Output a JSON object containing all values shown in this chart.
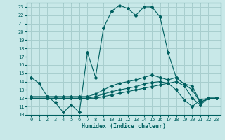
{
  "xlabel": "Humidex (Indice chaleur)",
  "background_color": "#c8e8e8",
  "grid_color": "#a8cece",
  "line_color": "#006060",
  "xlim": [
    -0.5,
    23.5
  ],
  "ylim": [
    10,
    23.5
  ],
  "xticks": [
    0,
    1,
    2,
    3,
    4,
    5,
    6,
    7,
    8,
    9,
    10,
    11,
    12,
    13,
    14,
    15,
    16,
    17,
    18,
    19,
    20,
    21,
    22,
    23
  ],
  "yticks": [
    10,
    11,
    12,
    13,
    14,
    15,
    16,
    17,
    18,
    19,
    20,
    21,
    22,
    23
  ],
  "line1_x": [
    0,
    1,
    2,
    3,
    4,
    5,
    6,
    7,
    8,
    9,
    10,
    11,
    12,
    13,
    14,
    15,
    16,
    17,
    18,
    19,
    20,
    21,
    22,
    23
  ],
  "line1_y": [
    14.5,
    13.8,
    12.2,
    11.5,
    10.3,
    11.2,
    10.3,
    17.5,
    14.5,
    20.5,
    22.5,
    23.2,
    22.8,
    22.0,
    23.0,
    23.0,
    21.8,
    17.5,
    14.5,
    13.7,
    13.0,
    11.5,
    12.0,
    12.0
  ],
  "line2_x": [
    0,
    2,
    3,
    4,
    5,
    6,
    7,
    8,
    9,
    10,
    11,
    12,
    13,
    14,
    15,
    16,
    17,
    18,
    19,
    20,
    21,
    22,
    23
  ],
  "line2_y": [
    12.2,
    12.2,
    12.2,
    12.2,
    12.2,
    12.2,
    12.2,
    12.5,
    13.0,
    13.5,
    13.8,
    14.0,
    14.2,
    14.5,
    14.8,
    14.5,
    14.2,
    14.5,
    13.7,
    13.5,
    11.5,
    12.0,
    12.0
  ],
  "line3_x": [
    0,
    2,
    3,
    4,
    5,
    6,
    7,
    8,
    9,
    10,
    11,
    12,
    13,
    14,
    15,
    16,
    17,
    18,
    19,
    20,
    21,
    22,
    23
  ],
  "line3_y": [
    12.0,
    12.0,
    12.0,
    12.0,
    12.0,
    12.0,
    12.0,
    12.2,
    12.5,
    12.8,
    13.0,
    13.2,
    13.4,
    13.7,
    13.9,
    14.0,
    13.8,
    14.0,
    13.5,
    12.0,
    11.2,
    12.0,
    12.0
  ],
  "line4_x": [
    0,
    2,
    3,
    4,
    5,
    6,
    7,
    8,
    9,
    10,
    11,
    12,
    13,
    14,
    15,
    16,
    17,
    18,
    19,
    20,
    21,
    22,
    23
  ],
  "line4_y": [
    12.0,
    12.0,
    12.0,
    12.0,
    12.0,
    12.0,
    12.0,
    12.0,
    12.2,
    12.4,
    12.6,
    12.8,
    13.0,
    13.2,
    13.4,
    13.6,
    13.8,
    13.0,
    11.8,
    11.0,
    11.8,
    12.0,
    12.0
  ]
}
